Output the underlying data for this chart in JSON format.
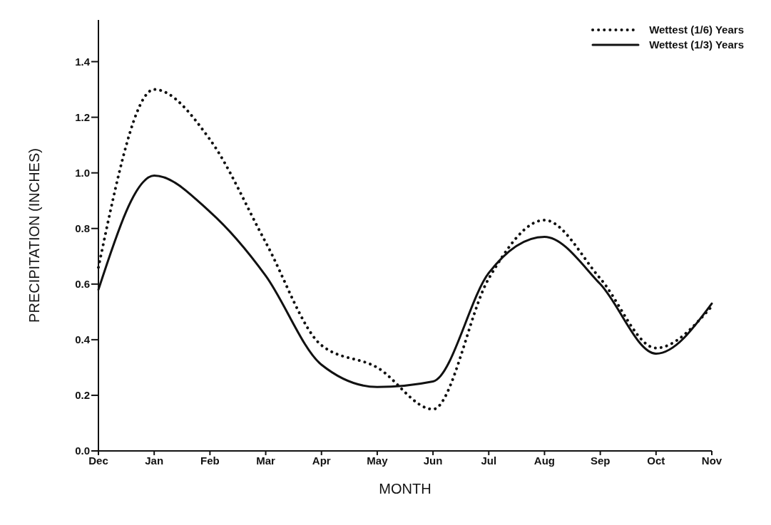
{
  "chart_data": {
    "type": "line",
    "xlabel": "MONTH",
    "ylabel": "PRECIPITATION (INCHES)",
    "categories": [
      "Dec",
      "Jan",
      "Feb",
      "Mar",
      "Apr",
      "May",
      "Jun",
      "Jul",
      "Aug",
      "Sep",
      "Oct",
      "Nov"
    ],
    "series": [
      {
        "name": "Wettest (1/6) Years",
        "color": "#111111",
        "line_style": "dotted",
        "values": [
          0.66,
          1.3,
          1.12,
          0.75,
          0.38,
          0.3,
          0.15,
          0.62,
          0.83,
          0.62,
          0.37,
          0.52
        ]
      },
      {
        "name": "Wettest (1/3) Years",
        "color": "#111111",
        "line_style": "solid",
        "values": [
          0.58,
          0.99,
          0.86,
          0.63,
          0.31,
          0.23,
          0.25,
          0.64,
          0.77,
          0.6,
          0.35,
          0.53
        ]
      }
    ],
    "ylim": [
      0,
      1.55
    ],
    "yticks": [
      {
        "value": 0,
        "label": "0.0"
      },
      0.2,
      0.4,
      0.6,
      0.8,
      {
        "value": 1,
        "label": "1.0"
      },
      1.2,
      1.4
    ],
    "grid": false,
    "legend": "top right",
    "marker": "none"
  }
}
